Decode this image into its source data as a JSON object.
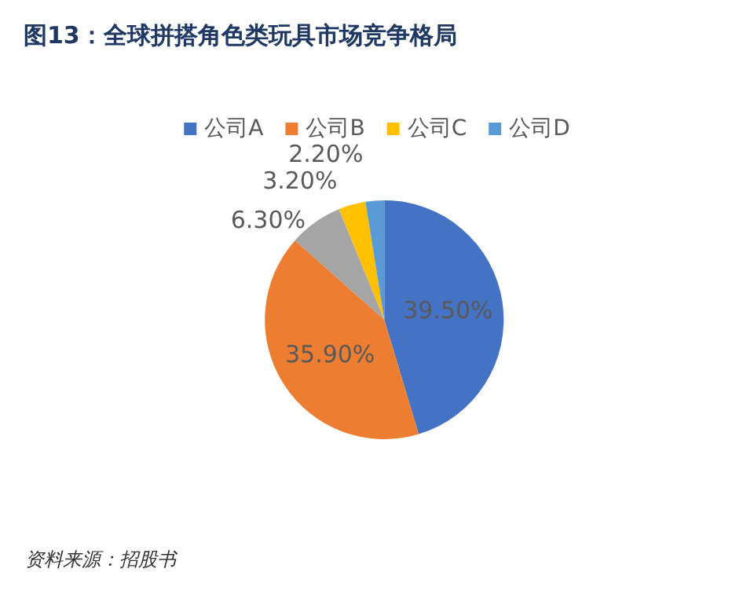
{
  "chart_data": {
    "type": "pie",
    "title": "图13：全球拼搭角色类玩具市场竞争格局",
    "categories": [
      "公司A",
      "公司B",
      null,
      "公司C",
      "公司D"
    ],
    "values": [
      39.5,
      35.9,
      6.3,
      3.2,
      2.2
    ],
    "value_labels": [
      "39.50%",
      "35.90%",
      "6.30%",
      "3.20%",
      "2.20%"
    ],
    "colors": [
      "#4472c4",
      "#ed7d31",
      "#a5a5a5",
      "#ffc000",
      "#5b9bd5"
    ],
    "legend": "top",
    "annotations": [
      "资料来源：招股书"
    ]
  }
}
